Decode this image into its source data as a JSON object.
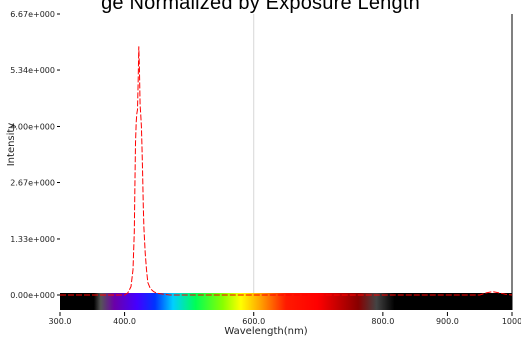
{
  "title": "ge Normalized by Exposure Length",
  "chart_data": {
    "type": "line",
    "xlabel": "Wavelength(nm)",
    "ylabel": "Intensity",
    "xlim": [
      300,
      1000
    ],
    "ylim": [
      0,
      6.67
    ],
    "x_ticks": [
      300,
      400,
      600,
      800,
      900,
      1000
    ],
    "x_tick_labels": [
      "300.0",
      "400.0",
      "600.0",
      "800.0",
      "900.0",
      "1000"
    ],
    "y_ticks": [
      0,
      1.33,
      2.67,
      4.0,
      5.34,
      6.67
    ],
    "y_tick_labels": [
      "0.00e+000",
      "1.33e+000",
      "2.67e+000",
      "4.00e+000",
      "5.34e+000",
      "6.67e+000"
    ],
    "grid": "vertical line at 600",
    "colors": {
      "series": "#ff0000",
      "grid": "#d8d8d8",
      "axis": "#000000"
    },
    "series": [
      {
        "values_x": [
          300,
          400,
          405,
          410,
          413,
          415,
          416,
          417,
          418,
          419,
          420,
          421,
          422,
          423,
          424,
          425,
          426,
          427,
          428,
          429,
          430,
          432,
          434,
          436,
          440,
          445,
          450,
          470,
          500,
          600,
          800,
          950,
          960,
          970,
          980,
          990,
          1000
        ],
        "values_y": [
          0,
          0,
          0.05,
          0.2,
          0.6,
          1.5,
          2.6,
          3.6,
          4.1,
          4.3,
          4.4,
          5.0,
          5.9,
          5.4,
          4.5,
          4.3,
          4.0,
          3.5,
          2.8,
          2.1,
          1.6,
          1.0,
          0.6,
          0.3,
          0.15,
          0.08,
          0.04,
          0,
          0,
          0,
          0,
          0,
          0.05,
          0.08,
          0.05,
          0.02,
          0
        ]
      }
    ],
    "spectrum_bar": true
  }
}
